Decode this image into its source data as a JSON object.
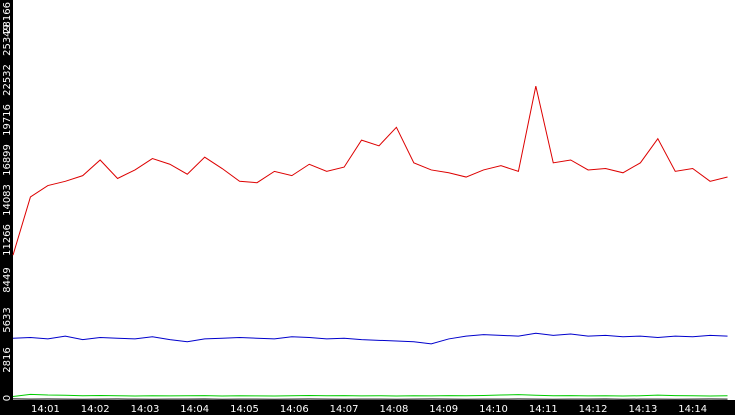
{
  "chart_data": {
    "type": "line",
    "title": "",
    "xlabel": "",
    "ylabel": "",
    "grid": false,
    "legend": "none",
    "colors": {
      "background": "#ffffff",
      "axis_bg": "#000000",
      "axis_text": "#ffffff"
    },
    "ylim": [
      0,
      28166
    ],
    "y_ticks": [
      {
        "value": 0,
        "label": "0"
      },
      {
        "value": 2816,
        "label": "2816"
      },
      {
        "value": 5633,
        "label": "5633"
      },
      {
        "value": 8449,
        "label": "8449"
      },
      {
        "value": 11266,
        "label": "11266"
      },
      {
        "value": 14083,
        "label": "14083"
      },
      {
        "value": 16899,
        "label": "16899"
      },
      {
        "value": 19716,
        "label": "19716"
      },
      {
        "value": 22532,
        "label": "22532"
      },
      {
        "value": 25349,
        "label": "25349"
      },
      {
        "value": 28166,
        "label": "28166"
      }
    ],
    "xlim_minutes": [
      0.35,
      14.85
    ],
    "x_ticks": [
      {
        "value": 1,
        "label": "14:01"
      },
      {
        "value": 2,
        "label": "14:02"
      },
      {
        "value": 3,
        "label": "14:03"
      },
      {
        "value": 4,
        "label": "14:04"
      },
      {
        "value": 5,
        "label": "14:05"
      },
      {
        "value": 6,
        "label": "14:06"
      },
      {
        "value": 7,
        "label": "14:07"
      },
      {
        "value": 8,
        "label": "14:08"
      },
      {
        "value": 9,
        "label": "14:09"
      },
      {
        "value": 10,
        "label": "14:10"
      },
      {
        "value": 11,
        "label": "14:11"
      },
      {
        "value": 12,
        "label": "14:12"
      },
      {
        "value": 13,
        "label": "14:13"
      },
      {
        "value": 14,
        "label": "14:14"
      }
    ],
    "x_time": [
      "14:00:21",
      "14:00:42",
      "14:01:03",
      "14:01:24",
      "14:01:45",
      "14:02:06",
      "14:02:27",
      "14:02:48",
      "14:03:09",
      "14:03:30",
      "14:03:51",
      "14:04:12",
      "14:04:33",
      "14:04:54",
      "14:05:15",
      "14:05:36",
      "14:05:57",
      "14:06:18",
      "14:06:39",
      "14:07:00",
      "14:07:21",
      "14:07:42",
      "14:08:03",
      "14:08:24",
      "14:08:45",
      "14:09:06",
      "14:09:27",
      "14:09:48",
      "14:10:09",
      "14:10:30",
      "14:10:51",
      "14:11:12",
      "14:11:33",
      "14:11:54",
      "14:12:15",
      "14:12:36",
      "14:12:57",
      "14:13:18",
      "14:13:39",
      "14:14:00",
      "14:14:21",
      "14:14:42"
    ],
    "series": [
      {
        "color": "#dd0000",
        "values": [
          10200,
          14300,
          15100,
          15400,
          15800,
          16900,
          15600,
          16200,
          17000,
          16600,
          15900,
          17100,
          16300,
          15400,
          15300,
          16100,
          15800,
          16600,
          16100,
          16400,
          18300,
          17900,
          19200,
          16700,
          16200,
          16000,
          15700,
          16200,
          16500,
          16100,
          22100,
          16700,
          16900,
          16200,
          16300,
          16000,
          16700,
          18400,
          16100,
          16300,
          15400,
          15700
        ]
      },
      {
        "color": "#0000cc",
        "values": [
          4350,
          4400,
          4300,
          4500,
          4250,
          4400,
          4350,
          4300,
          4450,
          4250,
          4100,
          4300,
          4350,
          4400,
          4350,
          4300,
          4450,
          4400,
          4300,
          4350,
          4250,
          4200,
          4150,
          4100,
          3950,
          4300,
          4500,
          4600,
          4550,
          4500,
          4700,
          4550,
          4650,
          4500,
          4550,
          4450,
          4500,
          4400,
          4500,
          4450,
          4550,
          4500
        ]
      },
      {
        "color": "#00cc00",
        "values": [
          250,
          400,
          350,
          330,
          300,
          320,
          300,
          280,
          300,
          290,
          300,
          310,
          280,
          300,
          290,
          280,
          300,
          320,
          300,
          310,
          290,
          300,
          280,
          300,
          290,
          310,
          300,
          320,
          350,
          380,
          330,
          300,
          310,
          290,
          300,
          280,
          300,
          340,
          310,
          300,
          280,
          300
        ]
      },
      {
        "color": "#000000",
        "values": [
          80,
          60,
          70,
          60,
          50,
          60,
          70,
          60,
          50,
          60,
          60,
          70,
          50,
          60,
          60,
          50,
          60,
          70,
          60,
          50,
          60,
          60,
          50,
          60,
          70,
          60,
          50,
          60,
          60,
          70,
          60,
          50,
          60,
          60,
          70,
          50,
          60,
          60,
          50,
          60,
          70,
          60
        ]
      }
    ]
  }
}
